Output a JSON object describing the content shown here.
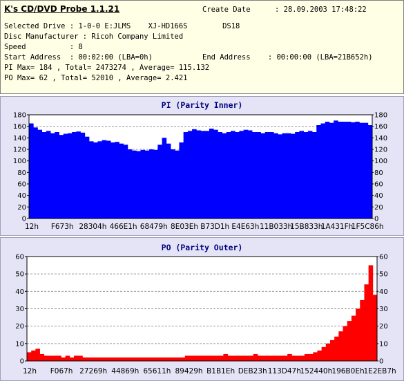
{
  "app": {
    "title": "K's CD/DVD Probe 1.1.21",
    "create_date_label": "Create Date",
    "create_date_value": ": 28.09.2003 17:48:22"
  },
  "info": {
    "selected_drive": "Selected Drive : 1-0-0 E:JLMS    XJ-HD166S        DS18",
    "disc_manufacturer": "Disc Manufacturer : Ricoh Company Limited",
    "speed": "Speed          : 8",
    "start_address": "Start Address  : 00:02:00 (LBA=0h)",
    "end_address": "End Address    : 00:00:00 (LBA=21B652h)",
    "pi_summary": "PI Max= 184 , Total= 2473274 , Average= 115.132",
    "po_summary": "PO Max= 62 , Total= 52010 , Average= 2.421"
  },
  "colors": {
    "pi_bar": "#0000ff",
    "po_bar": "#ff0000",
    "panel_bg": "#e4e4f6",
    "plot_bg": "#ffffff",
    "grid": "#999999",
    "header_bg": "#ffffe6",
    "title_color": "#000080"
  },
  "chart_data": [
    {
      "type": "area",
      "title": "PI (Parity Inner)",
      "ylim": [
        0,
        180
      ],
      "yticks": [
        0,
        20,
        40,
        60,
        80,
        100,
        120,
        140,
        160,
        180
      ],
      "gridlines": [
        40,
        80,
        120,
        160
      ],
      "x_tick_labels": [
        "12h",
        "F673h",
        "28304h",
        "466E1h",
        "68479h",
        "8E03Eh",
        "B73D1h",
        "E4E63h",
        "11B033h",
        "15B833h",
        "1A431Fh",
        "1F5C86h"
      ],
      "series": [
        {
          "values": [
            165,
            158,
            154,
            150,
            152,
            148,
            150,
            145,
            147,
            148,
            150,
            151,
            149,
            142,
            134,
            132,
            134,
            136,
            135,
            132,
            133,
            130,
            128,
            120,
            118,
            117,
            119,
            118,
            120,
            119,
            128,
            140,
            130,
            120,
            118,
            132,
            150,
            152,
            155,
            153,
            152,
            152,
            156,
            154,
            150,
            148,
            150,
            152,
            150,
            152,
            154,
            153,
            150,
            150,
            148,
            150,
            150,
            148,
            146,
            148,
            148,
            147,
            150,
            152,
            150,
            152,
            150,
            162,
            165,
            168,
            166,
            170,
            168,
            168,
            168,
            167,
            168,
            166,
            166,
            162
          ]
        }
      ]
    },
    {
      "type": "area",
      "title": "PO (Parity Outer)",
      "ylim": [
        0,
        60
      ],
      "yticks": [
        0,
        10,
        20,
        30,
        40,
        50,
        60
      ],
      "gridlines": [
        10,
        20,
        30,
        40,
        50
      ],
      "x_tick_labels": [
        "12h",
        "F067h",
        "27269h",
        "44869h",
        "65611h",
        "89429h",
        "B1B1Eh",
        "DEB23h",
        "113D47h",
        "152440h",
        "196B0Eh",
        "1E2EB7h"
      ],
      "series": [
        {
          "values": [
            5,
            6,
            7,
            4,
            3,
            3,
            3,
            3,
            2,
            3,
            2,
            3,
            3,
            2,
            2,
            2,
            2,
            2,
            2,
            2,
            2,
            2,
            2,
            2,
            2,
            2,
            2,
            2,
            2,
            2,
            2,
            2,
            2,
            2,
            2,
            2,
            2,
            3,
            3,
            3,
            3,
            3,
            3,
            3,
            3,
            3,
            4,
            3,
            3,
            3,
            3,
            3,
            3,
            4,
            3,
            3,
            3,
            3,
            3,
            3,
            3,
            4,
            3,
            3,
            3,
            4,
            4,
            5,
            6,
            8,
            10,
            12,
            14,
            17,
            20,
            23,
            26,
            30,
            35,
            44,
            55,
            38
          ]
        }
      ]
    }
  ]
}
